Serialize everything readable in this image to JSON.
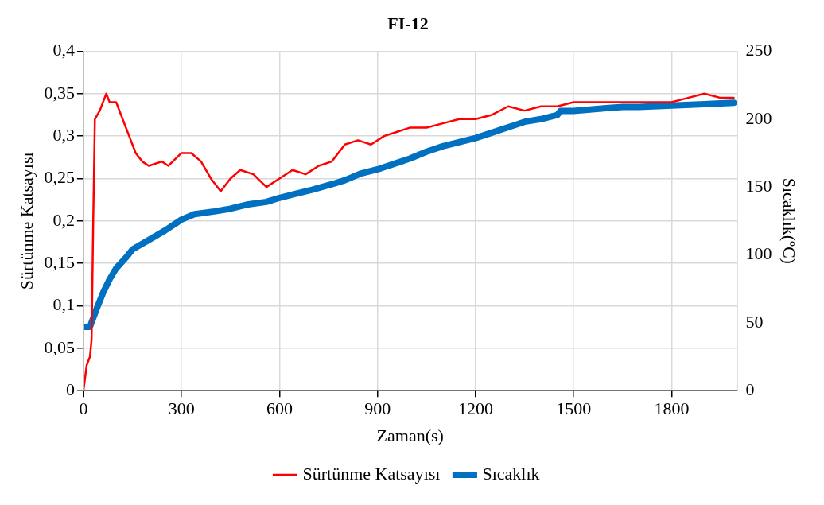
{
  "chart_data": {
    "type": "line",
    "title": "FI-12",
    "xlabel": "Zaman(s)",
    "ylabel": "Sürtünme Katsayısı",
    "y2label": "Sıcaklık(ºC)",
    "xlim": [
      0,
      2000
    ],
    "xticks": [
      0,
      300,
      600,
      900,
      1200,
      1500,
      1800
    ],
    "ylim": [
      0,
      0.4
    ],
    "yticks": [
      0,
      {
        "value": 0.05,
        "label": "0,05"
      },
      {
        "value": 0.1,
        "label": "0,1"
      },
      {
        "value": 0.15,
        "label": "0,15"
      },
      {
        "value": 0.2,
        "label": "0,2"
      },
      {
        "value": 0.25,
        "label": "0,25"
      },
      {
        "value": 0.3,
        "label": "0,3"
      },
      {
        "value": 0.35,
        "label": "0,35"
      },
      {
        "value": 0.4,
        "label": "0,4"
      }
    ],
    "y2lim": [
      0,
      250
    ],
    "y2ticks": [
      0,
      50,
      100,
      150,
      200,
      250
    ],
    "grid": true,
    "legend": "bottom",
    "marker": "none",
    "series": [
      {
        "name": "Sürtünme Katsayısı",
        "color": "#ff0000",
        "x": [
          0,
          10,
          20,
          25,
          30,
          35,
          50,
          70,
          80,
          100,
          120,
          140,
          160,
          180,
          200,
          240,
          260,
          300,
          330,
          360,
          390,
          420,
          450,
          480,
          520,
          560,
          600,
          640,
          680,
          720,
          760,
          800,
          840,
          880,
          920,
          960,
          1000,
          1050,
          1100,
          1150,
          1200,
          1250,
          1300,
          1350,
          1400,
          1450,
          1500,
          1550,
          1600,
          1650,
          1700,
          1750,
          1800,
          1850,
          1900,
          1950,
          1990
        ],
        "values": [
          0,
          0.03,
          0.04,
          0.06,
          0.2,
          0.32,
          0.33,
          0.35,
          0.34,
          0.34,
          0.32,
          0.3,
          0.28,
          0.27,
          0.265,
          0.27,
          0.265,
          0.28,
          0.28,
          0.27,
          0.25,
          0.235,
          0.25,
          0.26,
          0.255,
          0.24,
          0.25,
          0.26,
          0.255,
          0.265,
          0.27,
          0.29,
          0.295,
          0.29,
          0.3,
          0.305,
          0.31,
          0.31,
          0.315,
          0.32,
          0.32,
          0.325,
          0.335,
          0.33,
          0.335,
          0.335,
          0.34,
          0.34,
          0.34,
          0.34,
          0.34,
          0.34,
          0.34,
          0.345,
          0.35,
          0.345,
          0.345
        ]
      },
      {
        "name": "Sıcaklık",
        "color": "#0070c0",
        "axis": "y2",
        "x": [
          0,
          20,
          40,
          60,
          80,
          100,
          130,
          150,
          200,
          250,
          300,
          340,
          400,
          450,
          500,
          560,
          600,
          650,
          700,
          760,
          800,
          850,
          900,
          950,
          1000,
          1050,
          1100,
          1200,
          1250,
          1300,
          1350,
          1400,
          1450,
          1460,
          1500,
          1550,
          1600,
          1650,
          1700,
          1800,
          1900,
          1990
        ],
        "values": [
          47,
          47,
          60,
          72,
          82,
          90,
          98,
          104,
          111,
          118,
          126,
          130,
          132,
          134,
          137,
          139,
          142,
          145,
          148,
          152,
          155,
          160,
          163,
          167,
          171,
          176,
          180,
          186,
          190,
          194,
          198,
          200,
          203,
          206,
          206,
          207,
          208,
          209,
          209,
          210,
          211,
          212
        ]
      }
    ]
  }
}
